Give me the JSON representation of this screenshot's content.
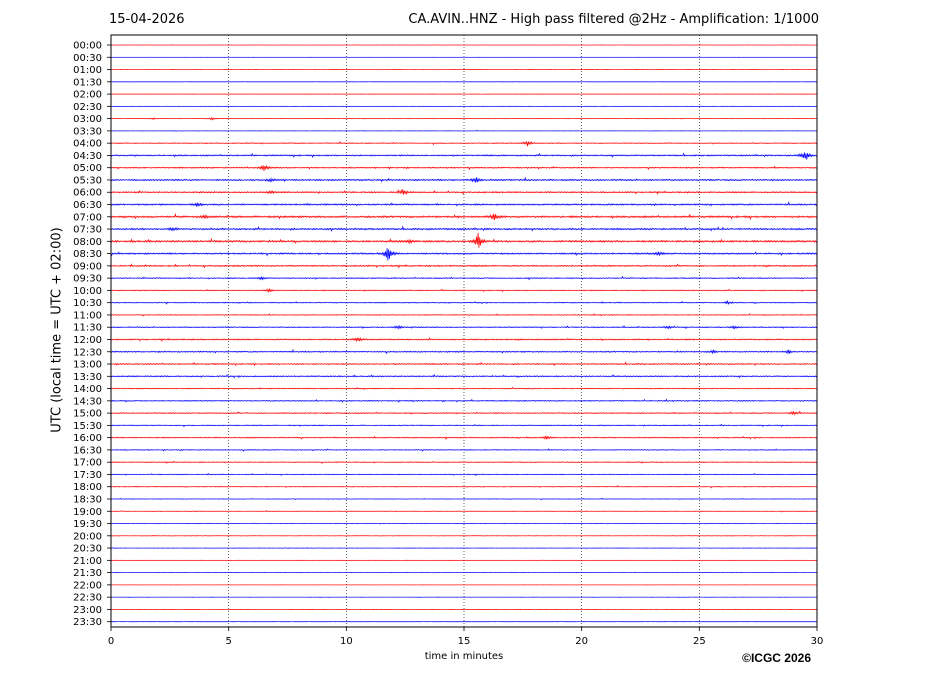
{
  "header": {
    "date": "15-04-2026",
    "title": "CA.AVIN..HNZ - High pass filtered @2Hz - Amplification: 1/1000"
  },
  "footer": {
    "copyright": "©ICGC 2026"
  },
  "colors": {
    "trace_even": "#ff0000",
    "trace_odd": "#0000ff",
    "grid": "#000000"
  },
  "chart_data": {
    "type": "line",
    "xlabel": "time in minutes",
    "ylabel": "UTC (local time = UTC + 02:00)",
    "xlim": [
      0,
      30
    ],
    "xticks": [
      "0",
      "5",
      "10",
      "15",
      "20",
      "25",
      "30"
    ],
    "x_gridlines": [
      5,
      10,
      15,
      20,
      25
    ],
    "grid": "vertical dotted",
    "rows": [
      "00:00",
      "00:30",
      "01:00",
      "01:30",
      "02:00",
      "02:30",
      "03:00",
      "03:30",
      "04:00",
      "04:30",
      "05:00",
      "05:30",
      "06:00",
      "06:30",
      "07:00",
      "07:30",
      "08:00",
      "08:30",
      "09:00",
      "09:30",
      "10:00",
      "10:30",
      "11:00",
      "11:30",
      "12:00",
      "12:30",
      "13:00",
      "13:30",
      "14:00",
      "14:30",
      "15:00",
      "15:30",
      "16:00",
      "16:30",
      "17:00",
      "17:30",
      "18:00",
      "18:30",
      "19:00",
      "19:30",
      "20:00",
      "20:30",
      "21:00",
      "21:30",
      "22:00",
      "22:30",
      "23:00",
      "23:30"
    ],
    "noise_levels": [
      0.05,
      0.05,
      0.05,
      0.06,
      0.06,
      0.07,
      0.1,
      0.12,
      0.3,
      0.45,
      0.4,
      0.5,
      0.45,
      0.5,
      0.6,
      0.55,
      0.6,
      0.5,
      0.45,
      0.35,
      0.3,
      0.3,
      0.3,
      0.35,
      0.4,
      0.4,
      0.4,
      0.4,
      0.3,
      0.35,
      0.35,
      0.3,
      0.35,
      0.3,
      0.3,
      0.25,
      0.25,
      0.2,
      0.18,
      0.15,
      0.12,
      0.1,
      0.08,
      0.07,
      0.06,
      0.05,
      0.05,
      0.05
    ],
    "events": [
      {
        "row": 6,
        "t": 4.3,
        "amp": 1.2
      },
      {
        "row": 6,
        "t": 1.8,
        "amp": 0.6
      },
      {
        "row": 8,
        "t": 17.7,
        "amp": 2.0
      },
      {
        "row": 9,
        "t": 29.5,
        "amp": 4.0
      },
      {
        "row": 10,
        "t": 6.5,
        "amp": 2.2
      },
      {
        "row": 11,
        "t": 15.5,
        "amp": 2.2
      },
      {
        "row": 11,
        "t": 6.8,
        "amp": 1.2
      },
      {
        "row": 12,
        "t": 12.4,
        "amp": 2.0
      },
      {
        "row": 12,
        "t": 6.8,
        "amp": 1.0
      },
      {
        "row": 13,
        "t": 3.7,
        "amp": 1.6
      },
      {
        "row": 14,
        "t": 16.3,
        "amp": 3.0
      },
      {
        "row": 14,
        "t": 4.0,
        "amp": 1.2
      },
      {
        "row": 15,
        "t": 2.6,
        "amp": 1.0
      },
      {
        "row": 16,
        "t": 15.6,
        "amp": 6.0
      },
      {
        "row": 16,
        "t": 12.7,
        "amp": 1.0
      },
      {
        "row": 17,
        "t": 11.8,
        "amp": 6.5
      },
      {
        "row": 17,
        "t": 23.3,
        "amp": 1.2
      },
      {
        "row": 19,
        "t": 6.4,
        "amp": 1.0
      },
      {
        "row": 20,
        "t": 6.7,
        "amp": 1.2
      },
      {
        "row": 21,
        "t": 26.2,
        "amp": 1.0
      },
      {
        "row": 23,
        "t": 12.2,
        "amp": 1.2
      },
      {
        "row": 23,
        "t": 23.7,
        "amp": 1.0
      },
      {
        "row": 23,
        "t": 26.5,
        "amp": 1.0
      },
      {
        "row": 24,
        "t": 10.5,
        "amp": 1.6
      },
      {
        "row": 25,
        "t": 25.6,
        "amp": 1.2
      },
      {
        "row": 25,
        "t": 28.8,
        "amp": 1.0
      },
      {
        "row": 30,
        "t": 29.0,
        "amp": 1.4
      },
      {
        "row": 32,
        "t": 18.5,
        "amp": 1.2
      }
    ]
  }
}
